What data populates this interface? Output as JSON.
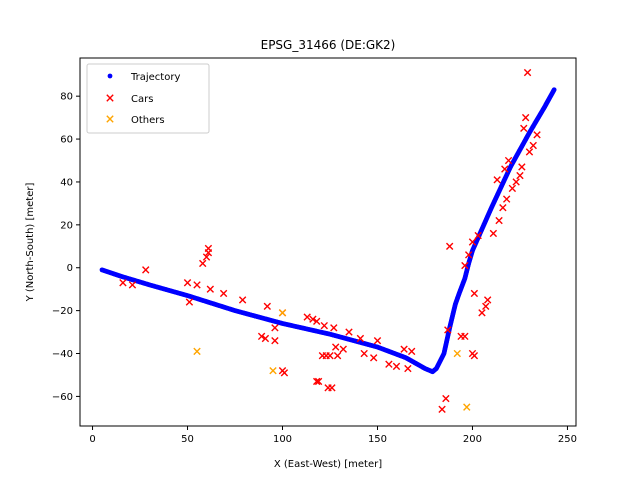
{
  "chart_data": {
    "type": "scatter",
    "title": "EPSG_31466 (DE:GK2)",
    "xlabel": "X (East-West) [meter]",
    "ylabel": "Y (North-South) [meter]",
    "xlim": [
      -6.6,
      254.5
    ],
    "ylim": [
      -73.8,
      97.8
    ],
    "xticks": [
      0,
      50,
      100,
      150,
      200,
      250
    ],
    "yticks": [
      -60,
      -40,
      -20,
      0,
      20,
      40,
      60,
      80
    ],
    "legend_position": "top-left",
    "grid": false,
    "series": [
      {
        "name": "Trajectory",
        "marker": "dot",
        "color": "#0000ff",
        "style": "dense-line",
        "path": [
          [
            5,
            -1
          ],
          [
            15,
            -4
          ],
          [
            30,
            -8
          ],
          [
            50,
            -13
          ],
          [
            75,
            -20
          ],
          [
            100,
            -26
          ],
          [
            125,
            -31
          ],
          [
            150,
            -37
          ],
          [
            165,
            -42
          ],
          [
            175,
            -47
          ],
          [
            179,
            -48.5
          ],
          [
            181,
            -47
          ],
          [
            185,
            -40
          ],
          [
            188,
            -28
          ],
          [
            191,
            -17
          ],
          [
            193,
            -12
          ],
          [
            196,
            -5
          ],
          [
            198,
            2
          ],
          [
            200,
            8
          ],
          [
            203,
            14
          ],
          [
            210,
            28
          ],
          [
            220,
            47
          ],
          [
            230,
            63
          ],
          [
            238,
            75
          ],
          [
            243,
            83
          ]
        ]
      },
      {
        "name": "Cars",
        "marker": "x",
        "color": "#ff0000",
        "points": [
          [
            16,
            -7
          ],
          [
            21,
            -8
          ],
          [
            28,
            -1
          ],
          [
            50,
            -7
          ],
          [
            51,
            -16
          ],
          [
            55,
            -8
          ],
          [
            58,
            2
          ],
          [
            60,
            5
          ],
          [
            61,
            7
          ],
          [
            61,
            9
          ],
          [
            62,
            -10
          ],
          [
            69,
            -12
          ],
          [
            79,
            -15
          ],
          [
            89,
            -32
          ],
          [
            91,
            -33
          ],
          [
            92,
            -18
          ],
          [
            96,
            -28
          ],
          [
            96,
            -34
          ],
          [
            100,
            -21
          ],
          [
            100,
            -48
          ],
          [
            101,
            -49
          ],
          [
            113,
            -23
          ],
          [
            116,
            -24
          ],
          [
            118,
            -25
          ],
          [
            118,
            -53
          ],
          [
            119,
            -53
          ],
          [
            121,
            -41
          ],
          [
            122,
            -27
          ],
          [
            123,
            -41
          ],
          [
            124,
            -56
          ],
          [
            125,
            -41
          ],
          [
            126,
            -56
          ],
          [
            127,
            -28
          ],
          [
            128,
            -37
          ],
          [
            129,
            -41
          ],
          [
            132,
            -38
          ],
          [
            135,
            -30
          ],
          [
            141,
            -33
          ],
          [
            143,
            -40
          ],
          [
            148,
            -42
          ],
          [
            150,
            -34
          ],
          [
            156,
            -45
          ],
          [
            160,
            -46
          ],
          [
            164,
            -38
          ],
          [
            168,
            -39
          ],
          [
            166,
            -47
          ],
          [
            184,
            -66
          ],
          [
            186,
            -61
          ],
          [
            187,
            -29
          ],
          [
            188,
            10
          ],
          [
            194,
            -32
          ],
          [
            196,
            -32
          ],
          [
            196,
            1
          ],
          [
            198,
            6
          ],
          [
            200,
            12
          ],
          [
            200,
            -40
          ],
          [
            201,
            -41
          ],
          [
            201,
            -12
          ],
          [
            203,
            15
          ],
          [
            205,
            -21
          ],
          [
            207,
            -18
          ],
          [
            208,
            -15
          ],
          [
            211,
            16
          ],
          [
            213,
            41
          ],
          [
            214,
            22
          ],
          [
            216,
            28
          ],
          [
            217,
            46
          ],
          [
            218,
            32
          ],
          [
            219,
            50
          ],
          [
            221,
            37
          ],
          [
            223,
            40
          ],
          [
            225,
            43
          ],
          [
            226,
            47
          ],
          [
            227,
            65
          ],
          [
            228,
            70
          ],
          [
            229,
            91
          ],
          [
            230,
            54
          ],
          [
            232,
            57
          ],
          [
            234,
            62
          ]
        ]
      },
      {
        "name": "Others",
        "marker": "x",
        "color": "#ffa500",
        "points": [
          [
            55,
            -39
          ],
          [
            95,
            -48
          ],
          [
            100,
            -21
          ],
          [
            192,
            -40
          ],
          [
            197,
            -65
          ]
        ]
      }
    ]
  }
}
